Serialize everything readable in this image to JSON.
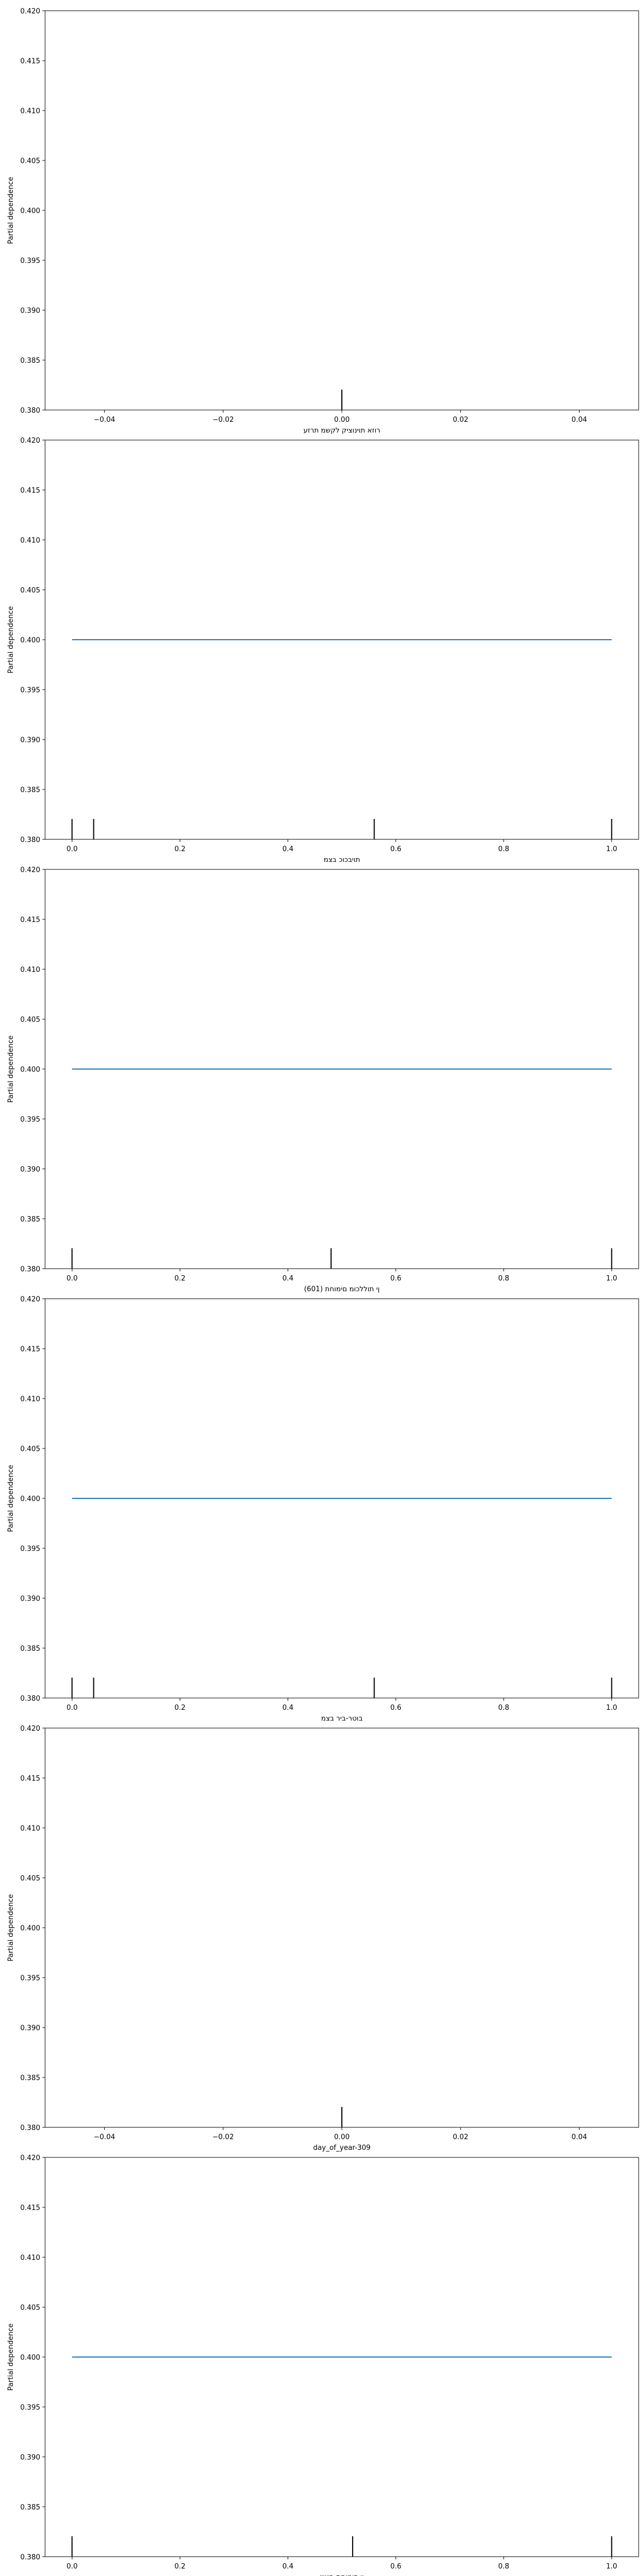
{
  "colors": {
    "line": "#1f77b4",
    "deciles": "#000000",
    "axes": "#000000"
  },
  "chart_data": [
    {
      "type": "line",
      "xlabel": "רוזא תוינוציק לקשמ תרזע",
      "ylabel": "Partial dependence",
      "xlim": [
        -0.05,
        0.05
      ],
      "ylim": [
        0.38,
        0.42
      ],
      "xticks": [
        -0.04,
        -0.02,
        0.0,
        0.02,
        0.04
      ],
      "xtick_labels": [
        "−0.04",
        "−0.02",
        "0.00",
        "0.02",
        "0.04"
      ],
      "yticks": [
        0.38,
        0.385,
        0.39,
        0.395,
        0.4,
        0.405,
        0.41,
        0.415,
        0.42
      ],
      "ytick_labels": [
        "0.380",
        "0.385",
        "0.390",
        "0.395",
        "0.400",
        "0.405",
        "0.410",
        "0.415",
        "0.420"
      ],
      "series": [],
      "deciles": [
        0.0
      ]
    },
    {
      "type": "line",
      "xlabel": "תויבכוכ בצמ",
      "ylabel": "Partial dependence",
      "xlim": [
        -0.05,
        1.05
      ],
      "ylim": [
        0.38,
        0.42
      ],
      "xticks": [
        0.0,
        0.2,
        0.4,
        0.6,
        0.8,
        1.0
      ],
      "xtick_labels": [
        "0.0",
        "0.2",
        "0.4",
        "0.6",
        "0.8",
        "1.0"
      ],
      "yticks": [
        0.38,
        0.385,
        0.39,
        0.395,
        0.4,
        0.405,
        0.41,
        0.415,
        0.42
      ],
      "ytick_labels": [
        "0.380",
        "0.385",
        "0.390",
        "0.395",
        "0.400",
        "0.405",
        "0.410",
        "0.415",
        "0.420"
      ],
      "series": [
        {
          "x": [
            0.0,
            1.0
          ],
          "y": [
            0.4,
            0.4
          ]
        }
      ],
      "deciles": [
        0.0,
        0.04,
        0.56,
        1.0
      ]
    },
    {
      "type": "line",
      "xlabel": "ןי תוללכומ םימוחת (601)",
      "ylabel": "Partial dependence",
      "xlim": [
        -0.05,
        1.05
      ],
      "ylim": [
        0.38,
        0.42
      ],
      "xticks": [
        0.0,
        0.2,
        0.4,
        0.6,
        0.8,
        1.0
      ],
      "xtick_labels": [
        "0.0",
        "0.2",
        "0.4",
        "0.6",
        "0.8",
        "1.0"
      ],
      "yticks": [
        0.38,
        0.385,
        0.39,
        0.395,
        0.4,
        0.405,
        0.41,
        0.415,
        0.42
      ],
      "ytick_labels": [
        "0.380",
        "0.385",
        "0.390",
        "0.395",
        "0.400",
        "0.405",
        "0.410",
        "0.415",
        "0.420"
      ],
      "series": [
        {
          "x": [
            0.0,
            1.0
          ],
          "y": [
            0.4,
            0.4
          ]
        }
      ],
      "deciles": [
        0.0,
        0.48,
        1.0
      ]
    },
    {
      "type": "line",
      "xlabel": "בוטר-ביר בצמ",
      "ylabel": "Partial dependence",
      "xlim": [
        -0.05,
        1.05
      ],
      "ylim": [
        0.38,
        0.42
      ],
      "xticks": [
        0.0,
        0.2,
        0.4,
        0.6,
        0.8,
        1.0
      ],
      "xtick_labels": [
        "0.0",
        "0.2",
        "0.4",
        "0.6",
        "0.8",
        "1.0"
      ],
      "yticks": [
        0.38,
        0.385,
        0.39,
        0.395,
        0.4,
        0.405,
        0.41,
        0.415,
        0.42
      ],
      "ytick_labels": [
        "0.380",
        "0.385",
        "0.390",
        "0.395",
        "0.400",
        "0.405",
        "0.410",
        "0.415",
        "0.420"
      ],
      "series": [
        {
          "x": [
            0.0,
            1.0
          ],
          "y": [
            0.4,
            0.4
          ]
        }
      ],
      "deciles": [
        0.0,
        0.04,
        0.56,
        1.0
      ]
    },
    {
      "type": "line",
      "xlabel": "day_of_year-309",
      "ylabel": "Partial dependence",
      "xlim": [
        -0.05,
        0.05
      ],
      "ylim": [
        0.38,
        0.42
      ],
      "xticks": [
        -0.04,
        -0.02,
        0.0,
        0.02,
        0.04
      ],
      "xtick_labels": [
        "−0.04",
        "−0.02",
        "0.00",
        "0.02",
        "0.04"
      ],
      "yticks": [
        0.38,
        0.385,
        0.39,
        0.395,
        0.4,
        0.405,
        0.41,
        0.415,
        0.42
      ],
      "ytick_labels": [
        "0.380",
        "0.385",
        "0.390",
        "0.395",
        "0.400",
        "0.405",
        "0.410",
        "0.415",
        "0.420"
      ],
      "series": [],
      "deciles": [
        0.0
      ]
    },
    {
      "type": "line",
      "xlabel": "ןי םימוחת-בושיי",
      "ylabel": "Partial dependence",
      "xlim": [
        -0.05,
        1.05
      ],
      "ylim": [
        0.38,
        0.42
      ],
      "xticks": [
        0.0,
        0.2,
        0.4,
        0.6,
        0.8,
        1.0
      ],
      "xtick_labels": [
        "0.0",
        "0.2",
        "0.4",
        "0.6",
        "0.8",
        "1.0"
      ],
      "yticks": [
        0.38,
        0.385,
        0.39,
        0.395,
        0.4,
        0.405,
        0.41,
        0.415,
        0.42
      ],
      "ytick_labels": [
        "0.380",
        "0.385",
        "0.390",
        "0.395",
        "0.400",
        "0.405",
        "0.410",
        "0.415",
        "0.420"
      ],
      "series": [
        {
          "x": [
            0.0,
            1.0
          ],
          "y": [
            0.4,
            0.4
          ]
        }
      ],
      "deciles": [
        0.0,
        0.52,
        1.0
      ]
    }
  ]
}
